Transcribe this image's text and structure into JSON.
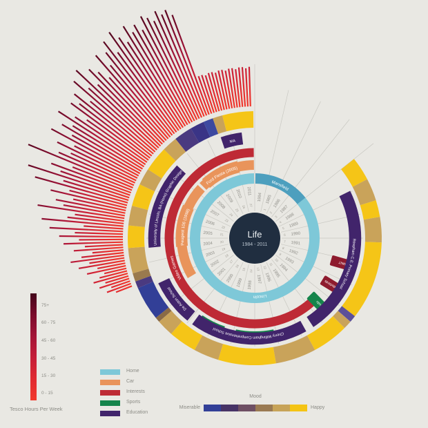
{
  "title": {
    "main": "Life",
    "subtitle": "1984 - 2011"
  },
  "colors": {
    "background": "#E9E8E3",
    "center": "#202E40",
    "home_dark": "#4D9FBE",
    "home_light": "#7EC8D8",
    "car": "#E9945B",
    "interests": "#BE2A35",
    "interests_box": "#8E1B2E",
    "sports": "#15854B",
    "education": "#41246B",
    "mood_happy": "#F5C517",
    "mood_tan": "#C9A35A",
    "mood_blue": "#323F97",
    "spoke": "#C9C8C2",
    "year_text": "#8F8E88",
    "age_text": "#A29F97"
  },
  "legend": {
    "categories": [
      {
        "label": "Home",
        "color": "#7EC8D8"
      },
      {
        "label": "Car",
        "color": "#E9945B"
      },
      {
        "label": "Interests",
        "color": "#BE2A35"
      },
      {
        "label": "Sports",
        "color": "#15854B"
      },
      {
        "label": "Education",
        "color": "#41246B"
      }
    ],
    "mood": {
      "title": "Mood",
      "left": "Miserable",
      "right": "Happy",
      "stops": [
        "#323F97",
        "#473366",
        "#6E4F63",
        "#9A7A52",
        "#C7A358",
        "#F4C414"
      ]
    },
    "tesco": {
      "caption": "Tesco Hours Per Week",
      "bands": [
        "75+",
        "60 - 75",
        "45 - 60",
        "30 - 45",
        "15 - 30",
        "0 - 15"
      ],
      "gradient": [
        "#43051A",
        "#7A0B2B",
        "#A31537",
        "#C51E38",
        "#E02A31",
        "#F2392C"
      ]
    }
  },
  "chart_data": {
    "type": "radial-timeline",
    "title": "Life",
    "subtitle": "1984 - 2011",
    "year_start": 1984,
    "year_end": 2011,
    "years": [
      1984,
      1985,
      1986,
      1987,
      1988,
      1989,
      1990,
      1991,
      1992,
      1993,
      1994,
      1995,
      1996,
      1997,
      1998,
      1999,
      2000,
      2001,
      2002,
      2003,
      2004,
      2005,
      2006,
      2007,
      2008,
      2009,
      2010,
      2011
    ],
    "ages": [
      1,
      2,
      3,
      4,
      5,
      6,
      7,
      8,
      9,
      10,
      11,
      12,
      13,
      14,
      15,
      16,
      17,
      18,
      19,
      20,
      21,
      22,
      23,
      24,
      25,
      26,
      27
    ],
    "rings": {
      "home": {
        "segments": [
          {
            "label": "Mansfield",
            "start": 1984.05,
            "end": 1988.0,
            "color": "#4D9FBE",
            "label_at": 1986.0
          },
          {
            "label": "Lincoln",
            "start": 1988.0,
            "end": 2011.95,
            "color": "#7EC8D8",
            "label_at": 1997.6
          }
        ]
      },
      "car": {
        "segments": [
          {
            "label": "Peugeot 106 (1998)",
            "start": 2002.6,
            "end": 2008.35,
            "color": "#E9945B",
            "label_at": 2005.7,
            "bold_start": 2004.5,
            "bold_end": 2006.95
          },
          {
            "label": "Ford Fiesta (2005)",
            "start": 2008.5,
            "end": 2011.95,
            "color": "#E9945B",
            "label_at": 2009.85,
            "bold_start": 2008.75,
            "bold_end": 2011.0
          }
        ]
      },
      "interests": {
        "segments": [
          {
            "label": "Video Games",
            "start": 1994.8,
            "end": 2011.95,
            "color": "#BE2A35",
            "label_at": 2003.4
          }
        ],
        "radial_boxes": [
          {
            "label": "TMNT",
            "year": 1992.25,
            "color": "#8E1B2E"
          },
          {
            "label": "Thunderbirds",
            "year": 1993.45,
            "color": "#8E1B2E"
          }
        ]
      },
      "sports": {
        "radial_boxes": [
          {
            "label": "Judo",
            "year": 1994.55,
            "color": "#15854B"
          }
        ],
        "arc_boxes": [
          {
            "label": "Badminton",
            "start": 1997.1,
            "end": 1998.9,
            "color": "#15854B"
          },
          {
            "label": "Fencing",
            "start": 1999.45,
            "end": 2000.65,
            "color": "#15854B"
          }
        ]
      },
      "education": {
        "segments": [
          {
            "label": "Reepham C.E. Primary School",
            "start": 1988.95,
            "end": 1995.4,
            "color": "#41246B",
            "label_at": 1992.2
          },
          {
            "label": "Cherry Willingham Comprehensive School",
            "start": 1995.75,
            "end": 2000.8,
            "color": "#41246B",
            "label_at": 1998.3
          },
          {
            "label": "De Aston School",
            "start": 2001.05,
            "end": 2003.05,
            "color": "#41246B",
            "label_at": 2002.05
          },
          {
            "label": "University of Lincoln, BA (Hons) Graphic Design",
            "start": 2004.6,
            "end": 2008.35,
            "color": "#41246B",
            "label_at": 2006.5
          },
          {
            "label": "MA",
            "start": 2010.55,
            "end": 2011.45,
            "color": "#41246B",
            "label_at": 2011.0
          }
        ]
      },
      "mood": {
        "segments": [
          {
            "start": 1988.0,
            "end": 1988.85,
            "color": "#F5C517"
          },
          {
            "start": 1988.85,
            "end": 1989.65,
            "color": "#C9A35A"
          },
          {
            "start": 1989.65,
            "end": 1990.25,
            "color": "#F5C517"
          },
          {
            "start": 1990.25,
            "end": 1991.15,
            "color": "#C9A35A"
          },
          {
            "start": 1991.15,
            "end": 1993.95,
            "color": "#F5C517"
          },
          {
            "start": 1993.95,
            "end": 1994.2,
            "color": "#5C5099"
          },
          {
            "start": 1994.2,
            "end": 1994.5,
            "color": "#C9A35A"
          },
          {
            "start": 1994.5,
            "end": 1995.8,
            "color": "#F5C517"
          },
          {
            "start": 1995.8,
            "end": 1997.25,
            "color": "#C9A35A"
          },
          {
            "start": 1997.25,
            "end": 1999.3,
            "color": "#F5C517"
          },
          {
            "start": 1999.3,
            "end": 2000.2,
            "color": "#C9A35A"
          },
          {
            "start": 2000.2,
            "end": 2001.2,
            "color": "#F5C517"
          },
          {
            "start": 2001.2,
            "end": 2001.8,
            "color": "#C9A35A"
          },
          {
            "start": 2001.8,
            "end": 2001.98,
            "color": "#8A6A45"
          },
          {
            "start": 2001.98,
            "end": 2003.2,
            "color": "#323F97"
          },
          {
            "start": 2003.2,
            "end": 2003.45,
            "color": "#4A3A80"
          },
          {
            "start": 2003.45,
            "end": 2003.75,
            "color": "#9A7A4E"
          },
          {
            "start": 2003.75,
            "end": 2004.65,
            "color": "#C9A35A"
          },
          {
            "start": 2004.65,
            "end": 2005.45,
            "color": "#F5C517"
          },
          {
            "start": 2005.45,
            "end": 2006.15,
            "color": "#C9A35A"
          },
          {
            "start": 2006.15,
            "end": 2006.95,
            "color": "#F5C517"
          },
          {
            "start": 2006.95,
            "end": 2007.55,
            "color": "#C9A35A"
          },
          {
            "start": 2007.55,
            "end": 2008.45,
            "color": "#F5C517"
          },
          {
            "start": 2008.45,
            "end": 2009.0,
            "color": "#C9A35A"
          },
          {
            "start": 2009.0,
            "end": 2009.65,
            "color": "#4A3A80"
          },
          {
            "start": 2009.65,
            "end": 2010.15,
            "color": "#3A3486"
          },
          {
            "start": 2010.15,
            "end": 2010.5,
            "color": "#3D49A0"
          },
          {
            "start": 2010.5,
            "end": 2010.85,
            "color": "#C9A35A"
          },
          {
            "start": 2010.85,
            "end": 2011.95,
            "color": "#F5C517"
          }
        ]
      }
    },
    "bars": {
      "name": "Tesco Hours Per Week",
      "unit": "hours/week",
      "start_year": 2003.3,
      "end_year": 2011.9,
      "values": [
        12,
        18,
        14,
        22,
        17,
        25,
        20,
        16,
        28,
        20,
        33,
        25,
        38,
        30,
        22,
        35,
        27,
        42,
        31,
        45,
        34,
        52,
        28,
        58,
        40,
        35,
        62,
        44,
        50,
        38,
        55,
        42,
        68,
        48,
        75,
        52,
        60,
        45,
        80,
        58,
        50,
        62,
        50,
        70,
        55,
        65,
        58,
        72,
        60,
        52,
        68,
        63,
        70,
        58,
        76,
        65,
        80,
        62,
        74,
        68,
        60,
        78,
        66,
        75,
        82,
        70,
        85,
        78,
        72,
        83,
        76,
        80,
        74,
        83,
        80,
        76,
        82,
        78,
        80,
        75,
        28,
        28,
        27,
        28,
        28,
        27,
        28,
        28,
        27,
        28,
        28,
        27,
        28,
        28,
        27,
        28
      ]
    }
  }
}
